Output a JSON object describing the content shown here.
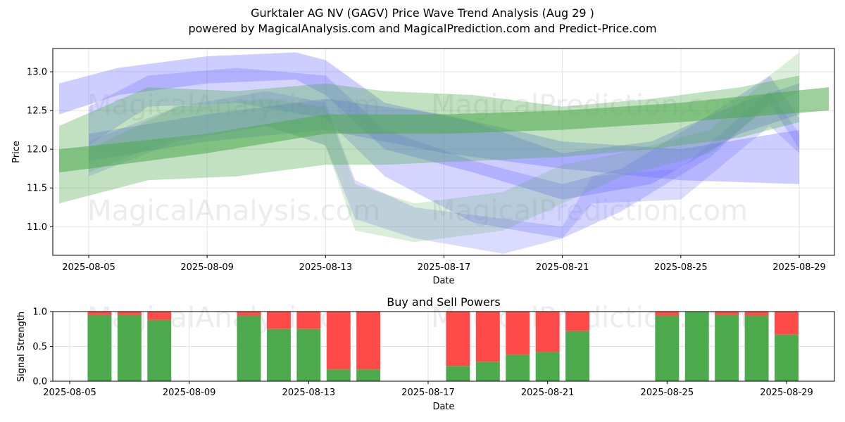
{
  "title_line1": "Gurktaler AG NV (GAGV) Price Wave Trend Analysis (Aug 29 )",
  "title_line2": "powered by MagicalAnalysis.com and MagicalPrediction.com and Predict-Price.com",
  "watermarks": [
    "MagicalAnalysis.com",
    "MagicalPrediction.com"
  ],
  "colors": {
    "buy": "#4caa4c",
    "sell": "#ff4a4a",
    "blue_band": "#6f6fff",
    "green_band": "#4caa4c"
  },
  "chart_data": [
    {
      "type": "area",
      "title": "",
      "xlabel": "Date",
      "ylabel": "Price",
      "ylim": [
        10.63,
        13.3
      ],
      "xlim": [
        "2025-08-04",
        "2025-08-30"
      ],
      "yticks": [
        11.0,
        11.5,
        12.0,
        12.5,
        13.0
      ],
      "ytick_labels": [
        "11.0",
        "11.5",
        "12.0",
        "12.5",
        "13.0"
      ],
      "xticks": [
        "2025-08-05",
        "2025-08-09",
        "2025-08-13",
        "2025-08-17",
        "2025-08-21",
        "2025-08-25",
        "2025-08-29"
      ],
      "series": [
        {
          "name": "blue-wave-1",
          "color": "blue",
          "x": [
            "2025-08-04",
            "2025-08-06",
            "2025-08-09",
            "2025-08-12",
            "2025-08-13",
            "2025-08-15",
            "2025-08-18",
            "2025-08-21",
            "2025-08-24",
            "2025-08-27",
            "2025-08-29"
          ],
          "upper": [
            12.85,
            13.05,
            13.2,
            13.25,
            13.15,
            12.6,
            12.35,
            11.95,
            12.1,
            12.6,
            12.85
          ],
          "lower": [
            12.45,
            12.7,
            12.85,
            12.9,
            12.7,
            12.0,
            11.7,
            11.35,
            11.55,
            12.2,
            12.45
          ],
          "alpha": 0.35
        },
        {
          "name": "blue-wave-2",
          "color": "blue",
          "x": [
            "2025-08-05",
            "2025-08-07",
            "2025-08-10",
            "2025-08-13",
            "2025-08-15",
            "2025-08-18",
            "2025-08-21",
            "2025-08-23",
            "2025-08-26",
            "2025-08-28",
            "2025-08-29"
          ],
          "upper": [
            12.55,
            12.95,
            13.05,
            12.95,
            12.25,
            11.85,
            11.55,
            11.75,
            12.45,
            12.95,
            12.4
          ],
          "lower": [
            12.05,
            12.55,
            12.6,
            12.4,
            11.65,
            11.05,
            10.85,
            11.2,
            11.9,
            12.6,
            12.0
          ],
          "alpha": 0.3
        },
        {
          "name": "blue-wave-3",
          "color": "blue",
          "x": [
            "2025-08-05",
            "2025-08-08",
            "2025-08-11",
            "2025-08-13",
            "2025-08-14",
            "2025-08-16",
            "2025-08-19",
            "2025-08-21",
            "2025-08-22",
            "2025-08-25",
            "2025-08-28",
            "2025-08-29"
          ],
          "upper": [
            12.1,
            12.55,
            12.75,
            12.6,
            11.6,
            11.25,
            11.1,
            11.0,
            11.65,
            11.75,
            12.75,
            12.2
          ],
          "lower": [
            11.65,
            12.1,
            12.3,
            12.05,
            11.1,
            10.85,
            10.65,
            10.85,
            11.3,
            11.35,
            12.3,
            11.95
          ],
          "alpha": 0.25
        },
        {
          "name": "blue-trend",
          "color": "blue",
          "x": [
            "2025-08-05",
            "2025-08-09",
            "2025-08-13",
            "2025-08-17",
            "2025-08-21",
            "2025-08-25",
            "2025-08-29"
          ],
          "upper": [
            12.2,
            12.45,
            12.65,
            12.45,
            12.1,
            12.0,
            12.25
          ],
          "lower": [
            11.85,
            12.1,
            12.25,
            11.95,
            11.75,
            11.6,
            11.55
          ],
          "alpha": 0.35
        },
        {
          "name": "green-wave-1",
          "color": "green",
          "x": [
            "2025-08-04",
            "2025-08-07",
            "2025-08-10",
            "2025-08-13",
            "2025-08-15",
            "2025-08-18",
            "2025-08-21",
            "2025-08-24",
            "2025-08-27",
            "2025-08-29"
          ],
          "upper": [
            12.3,
            12.8,
            12.75,
            12.85,
            12.75,
            12.7,
            12.55,
            12.65,
            12.8,
            12.95
          ],
          "lower": [
            11.3,
            11.6,
            11.65,
            11.8,
            11.8,
            11.85,
            11.9,
            12.0,
            12.15,
            12.35
          ],
          "alpha": 0.35
        },
        {
          "name": "green-wave-2",
          "color": "green",
          "x": [
            "2025-08-05",
            "2025-08-08",
            "2025-08-11",
            "2025-08-13",
            "2025-08-14",
            "2025-08-16",
            "2025-08-19",
            "2025-08-21",
            "2025-08-23",
            "2025-08-26",
            "2025-08-28",
            "2025-08-29"
          ],
          "upper": [
            12.0,
            12.55,
            12.65,
            12.55,
            11.55,
            11.3,
            11.45,
            11.8,
            11.95,
            12.25,
            12.95,
            13.25
          ],
          "lower": [
            11.7,
            12.15,
            12.3,
            12.05,
            10.95,
            10.8,
            10.95,
            11.3,
            11.65,
            11.95,
            12.55,
            12.75
          ],
          "alpha": 0.2
        },
        {
          "name": "green-trend",
          "color": "green",
          "x": [
            "2025-08-04",
            "2025-08-09",
            "2025-08-13",
            "2025-08-17",
            "2025-08-21",
            "2025-08-25",
            "2025-08-30"
          ],
          "upper": [
            12.0,
            12.2,
            12.45,
            12.45,
            12.5,
            12.6,
            12.8
          ],
          "lower": [
            11.7,
            11.95,
            12.2,
            12.2,
            12.25,
            12.35,
            12.5
          ],
          "alpha": 0.55
        }
      ]
    },
    {
      "type": "bar",
      "title": "Buy and Sell Powers",
      "xlabel": "Date",
      "ylabel": "Signal Strength",
      "ylim": [
        0.0,
        1.0
      ],
      "yticks": [
        0.0,
        0.5,
        1.0
      ],
      "ytick_labels": [
        "0.0",
        "0.5",
        "1.0"
      ],
      "xticks": [
        "2025-08-05",
        "2025-08-09",
        "2025-08-13",
        "2025-08-17",
        "2025-08-21",
        "2025-08-25",
        "2025-08-29"
      ],
      "dates": [
        "2025-08-06",
        "2025-08-07",
        "2025-08-08",
        "2025-08-11",
        "2025-08-12",
        "2025-08-13",
        "2025-08-14",
        "2025-08-15",
        "2025-08-18",
        "2025-08-19",
        "2025-08-20",
        "2025-08-21",
        "2025-08-22",
        "2025-08-25",
        "2025-08-26",
        "2025-08-27",
        "2025-08-28",
        "2025-08-29"
      ],
      "series": [
        {
          "name": "Buy",
          "values": [
            0.95,
            0.95,
            0.88,
            0.94,
            0.75,
            0.75,
            0.17,
            0.17,
            0.22,
            0.28,
            0.38,
            0.42,
            0.72,
            0.94,
            1.0,
            0.95,
            0.94,
            0.67
          ]
        },
        {
          "name": "Sell",
          "values": [
            0.05,
            0.05,
            0.12,
            0.06,
            0.25,
            0.25,
            0.83,
            0.83,
            0.78,
            0.72,
            0.62,
            0.58,
            0.28,
            0.06,
            0.0,
            0.05,
            0.06,
            0.33
          ]
        }
      ]
    }
  ]
}
